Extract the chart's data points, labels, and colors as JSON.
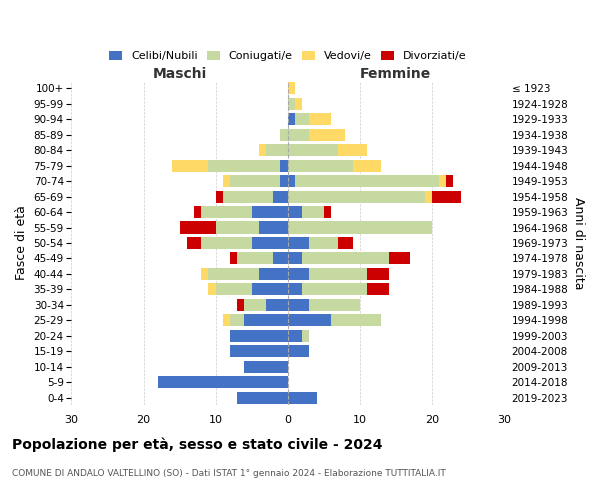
{
  "age_groups": [
    "0-4",
    "5-9",
    "10-14",
    "15-19",
    "20-24",
    "25-29",
    "30-34",
    "35-39",
    "40-44",
    "45-49",
    "50-54",
    "55-59",
    "60-64",
    "65-69",
    "70-74",
    "75-79",
    "80-84",
    "85-89",
    "90-94",
    "95-99",
    "100+"
  ],
  "birth_years": [
    "2019-2023",
    "2014-2018",
    "2009-2013",
    "2004-2008",
    "1999-2003",
    "1994-1998",
    "1989-1993",
    "1984-1988",
    "1979-1983",
    "1974-1978",
    "1969-1973",
    "1964-1968",
    "1959-1963",
    "1954-1958",
    "1949-1953",
    "1944-1948",
    "1939-1943",
    "1934-1938",
    "1929-1933",
    "1924-1928",
    "≤ 1923"
  ],
  "maschi": {
    "celibe": [
      7,
      18,
      6,
      8,
      8,
      6,
      3,
      5,
      4,
      2,
      5,
      4,
      5,
      2,
      1,
      1,
      0,
      0,
      0,
      0,
      0
    ],
    "coniugato": [
      0,
      0,
      0,
      0,
      0,
      2,
      3,
      5,
      7,
      5,
      7,
      6,
      7,
      7,
      7,
      10,
      3,
      1,
      0,
      0,
      0
    ],
    "vedovo": [
      0,
      0,
      0,
      0,
      0,
      1,
      0,
      1,
      1,
      0,
      0,
      0,
      0,
      0,
      1,
      5,
      1,
      0,
      0,
      0,
      0
    ],
    "divorziato": [
      0,
      0,
      0,
      0,
      0,
      0,
      1,
      0,
      0,
      1,
      2,
      5,
      1,
      1,
      0,
      0,
      0,
      0,
      0,
      0,
      0
    ]
  },
  "femmine": {
    "nubile": [
      4,
      0,
      0,
      3,
      2,
      6,
      3,
      2,
      3,
      2,
      3,
      0,
      2,
      0,
      1,
      0,
      0,
      0,
      1,
      0,
      0
    ],
    "coniugata": [
      0,
      0,
      0,
      0,
      1,
      7,
      7,
      9,
      8,
      12,
      4,
      20,
      3,
      19,
      20,
      9,
      7,
      3,
      2,
      1,
      0
    ],
    "vedova": [
      0,
      0,
      0,
      0,
      0,
      0,
      0,
      0,
      0,
      0,
      0,
      0,
      0,
      1,
      1,
      4,
      4,
      5,
      3,
      1,
      1
    ],
    "divorziata": [
      0,
      0,
      0,
      0,
      0,
      0,
      0,
      3,
      3,
      3,
      2,
      0,
      1,
      4,
      1,
      0,
      0,
      0,
      0,
      0,
      0
    ]
  },
  "colors": {
    "celibe": "#4472C4",
    "coniugato": "#c5d9a0",
    "vedovo": "#ffd966",
    "divorziato": "#cc0000"
  },
  "xlim": 30,
  "title": "Popolazione per età, sesso e stato civile - 2024",
  "subtitle": "COMUNE DI ANDALO VALTELLINO (SO) - Dati ISTAT 1° gennaio 2024 - Elaborazione TUTTITALIA.IT",
  "ylabel_left": "Fasce di età",
  "ylabel_right": "Anni di nascita",
  "xlabel_left": "Maschi",
  "xlabel_right": "Femmine",
  "legend_labels": [
    "Celibi/Nubili",
    "Coniugati/e",
    "Vedovi/e",
    "Divorziati/e"
  ],
  "bg_color": "#ffffff",
  "grid_color": "#cccccc"
}
